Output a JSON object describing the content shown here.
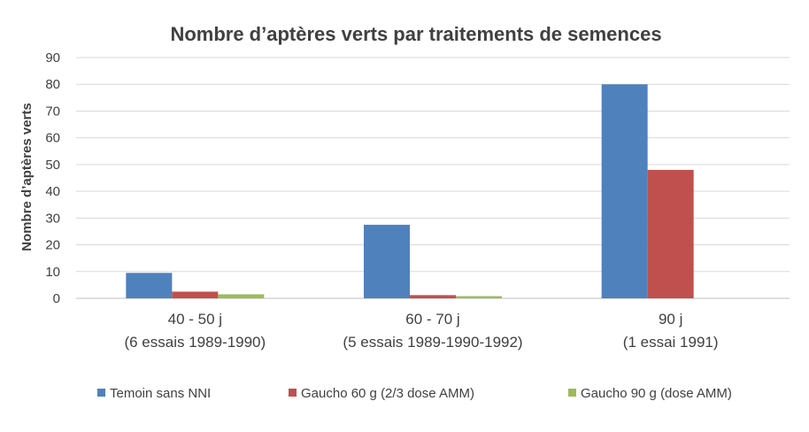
{
  "chart_data": {
    "type": "bar",
    "title": "Nombre d’aptères verts par traitements de semences",
    "ylabel": "Nombre d’aptères verts",
    "xlabel": "",
    "ylim": [
      0,
      90
    ],
    "yticks": [
      "0",
      "10",
      "20",
      "30",
      "40",
      "50",
      "60",
      "70",
      "80",
      "90"
    ],
    "grid": true,
    "legend_position": "bottom",
    "categories": [
      [
        "40 - 50 j",
        "(6 essais 1989-1990)"
      ],
      [
        "60 - 70 j",
        "(5 essais 1989-1990-1992)"
      ],
      [
        "90 j",
        "(1 essai 1991)"
      ]
    ],
    "series": [
      {
        "name": "Temoin sans NNI",
        "color": "#4f81bd",
        "values": [
          9.5,
          27.5,
          80
        ]
      },
      {
        "name": "Gaucho 60 g (2/3 dose AMM)",
        "color": "#c0504d",
        "values": [
          2.5,
          1.2,
          48
        ]
      },
      {
        "name": "Gaucho 90 g (dose AMM)",
        "color": "#9bbb59",
        "values": [
          1.5,
          0.8,
          0
        ]
      }
    ]
  }
}
